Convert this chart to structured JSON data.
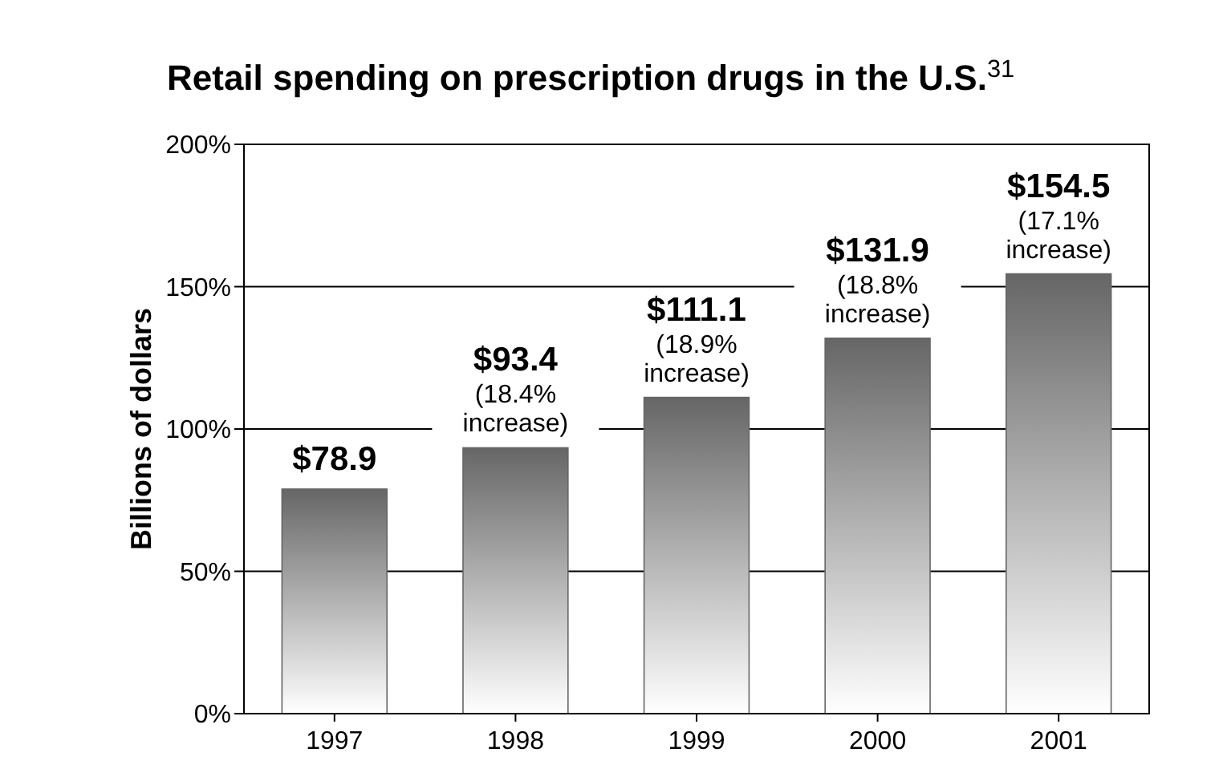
{
  "chart_data": {
    "type": "bar",
    "title": "Retail spending on prescription drugs in the U.S.$^{31}$",
    "ylabel": "Billions of dollars",
    "categories": [
      "1997",
      "1998",
      "1999",
      "2000",
      "2001"
    ],
    "values": [
      78.9,
      93.4,
      111.1,
      131.9,
      154.5
    ],
    "value_labels": [
      "$78.9",
      "$93.4",
      "$111.1",
      "$131.9",
      "$154.5"
    ],
    "color": "#666666",
    "ylim": [
      0,
      200
    ],
    "yticks": [
      {
        "value": 0,
        "label": "0%"
      },
      {
        "value": 50,
        "label": "50%"
      },
      {
        "value": 100,
        "label": "100%"
      },
      {
        "value": 150,
        "label": "150%"
      },
      {
        "value": 200,
        "label": "200%"
      }
    ],
    "grid": "y",
    "annotations": [
      {
        "text": "(18.4% increase)",
        "x": "1998",
        "y": 93.4
      },
      {
        "text": "(18.9% increase)",
        "x": "1999",
        "y": 111.1
      },
      {
        "text": "(18.8% increase)",
        "x": "2000",
        "y": 131.9
      },
      {
        "text": "(17.1% increase)",
        "x": "2001",
        "y": 154.5
      }
    ]
  }
}
